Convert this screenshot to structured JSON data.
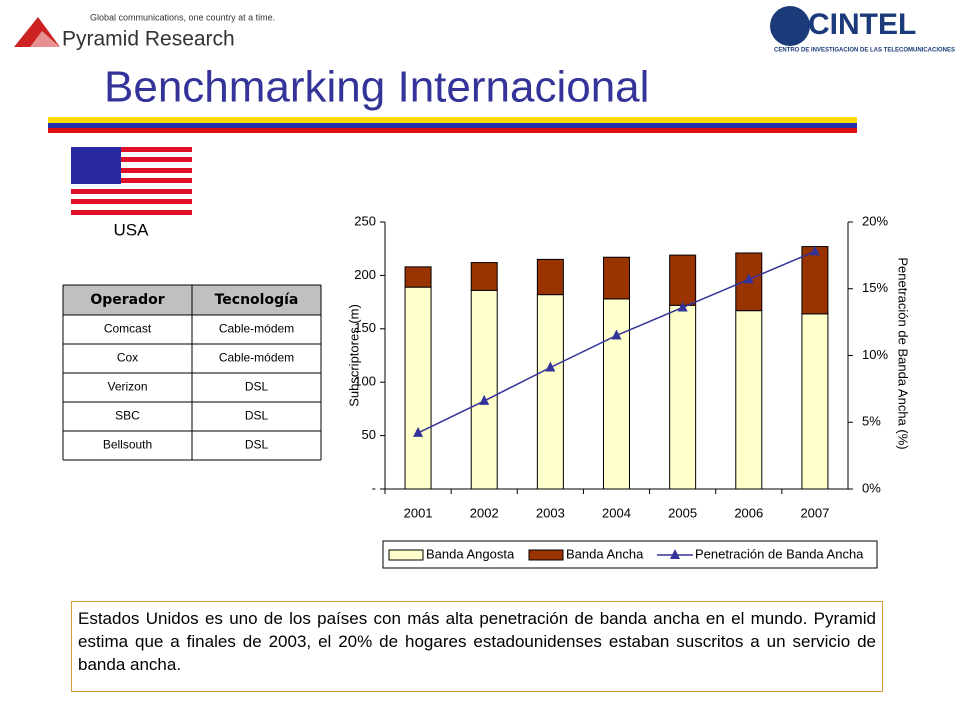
{
  "header": {
    "tagline": "Global communications, one country at a time.",
    "brand": "Pyramid Research",
    "partner": "CINTEL",
    "partner_subtitle": "CENTRO DE INVESTIGACION DE LAS TELECOMUNICACIONES",
    "title": "Benchmarking Internacional"
  },
  "country": "USA",
  "table": {
    "columns": [
      "Operador",
      "Tecnología"
    ],
    "rows": [
      [
        "Comcast",
        "Cable-módem"
      ],
      [
        "Cox",
        "Cable-módem"
      ],
      [
        "Verizon",
        "DSL"
      ],
      [
        "SBC",
        "DSL"
      ],
      [
        "Bellsouth",
        "DSL"
      ]
    ]
  },
  "chart_data": {
    "type": "bar",
    "stacked": true,
    "categories": [
      "2001",
      "2002",
      "2003",
      "2004",
      "2005",
      "2006",
      "2007"
    ],
    "series": [
      {
        "name": "Banda Angosta",
        "color": "#ffffcc",
        "values": [
          189,
          186,
          182,
          178,
          172,
          167,
          164
        ]
      },
      {
        "name": "Banda Ancha",
        "color": "#993300",
        "values": [
          19,
          26,
          33,
          39,
          47,
          54,
          63
        ]
      },
      {
        "name": "Penetración de Banda Ancha",
        "color": "#333399",
        "type": "line",
        "axis": "y2",
        "values": [
          4.2,
          6.6,
          9.1,
          11.5,
          13.6,
          15.7,
          17.8
        ]
      }
    ],
    "y_label": "Subscriptores (m)",
    "y2_label": "Penetración de Banda Ancha (%)",
    "ylim": [
      0,
      250
    ],
    "yticks": [
      {
        "value": 0,
        "label": "-"
      },
      50,
      100,
      150,
      200,
      250
    ],
    "y2lim": [
      0,
      20
    ],
    "y2ticks": [
      {
        "value": 0,
        "label": "0%"
      },
      {
        "value": 5,
        "label": "5%"
      },
      {
        "value": 10,
        "label": "10%"
      },
      {
        "value": 15,
        "label": "15%"
      },
      {
        "value": 20,
        "label": "20%"
      }
    ],
    "legend": "bottom"
  },
  "paragraph": "Estados Unidos es uno de los países con más alta penetración de banda ancha en el mundo. Pyramid estima que a finales de 2003, el 20% de hogares estadounidenses estaban suscritos a un servicio de banda ancha."
}
